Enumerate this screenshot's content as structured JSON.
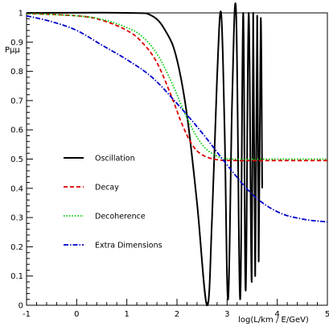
{
  "chart_data": {
    "type": "line",
    "xlabel": "log(L/km / E/GeV)",
    "ylabel": "Pμμ",
    "xlim": [
      -1,
      5
    ],
    "ylim": [
      0,
      1
    ],
    "x_ticks": [
      "-1",
      "0",
      "1",
      "2",
      "3",
      "4",
      "5"
    ],
    "y_ticks": [
      "0",
      "0.1",
      "0.2",
      "0.3",
      "0.4",
      "0.5",
      "0.6",
      "0.7",
      "0.8",
      "0.9",
      "1"
    ],
    "grid": false,
    "legend_position": "left",
    "series": [
      {
        "name": "Oscillation",
        "color": "#000000",
        "style": "solid",
        "x": [
          -1.0,
          1.0,
          1.5,
          1.8,
          2.0,
          2.2,
          2.4,
          2.6,
          2.7,
          2.8,
          2.88,
          2.95,
          3.02,
          3.1,
          3.18,
          3.26,
          3.32,
          3.37,
          3.43,
          3.49,
          3.52,
          3.56,
          3.6,
          3.63,
          3.67,
          3.7
        ],
        "y": [
          1.0,
          1.0,
          0.99,
          0.93,
          0.84,
          0.65,
          0.35,
          0.0,
          0.3,
          0.78,
          1.0,
          0.6,
          0.02,
          0.7,
          1.0,
          0.02,
          1.0,
          0.05,
          1.0,
          0.08,
          1.0,
          0.1,
          0.99,
          0.15,
          0.98,
          0.4
        ]
      },
      {
        "name": "Decay",
        "color": "#dd0000",
        "style": "dashed",
        "x": [
          -1.0,
          0.0,
          0.5,
          1.0,
          1.3,
          1.6,
          1.9,
          2.1,
          2.3,
          2.5,
          2.8,
          3.2,
          4.0,
          5.0
        ],
        "y": [
          0.998,
          0.99,
          0.975,
          0.94,
          0.9,
          0.83,
          0.71,
          0.62,
          0.55,
          0.515,
          0.498,
          0.495,
          0.495,
          0.495
        ]
      },
      {
        "name": "Decoherence",
        "color": "#00cc00",
        "style": "dotted",
        "x": [
          -1.0,
          0.0,
          0.5,
          1.0,
          1.3,
          1.6,
          1.9,
          2.2,
          2.5,
          2.8,
          3.1,
          4.0,
          5.0
        ],
        "y": [
          0.998,
          0.99,
          0.978,
          0.95,
          0.92,
          0.86,
          0.76,
          0.64,
          0.55,
          0.51,
          0.5,
          0.5,
          0.5
        ]
      },
      {
        "name": "Extra Dimensions",
        "color": "#0000cc",
        "style": "dashdot",
        "x": [
          -1.0,
          -0.5,
          0.0,
          0.5,
          1.0,
          1.5,
          2.0,
          2.5,
          3.0,
          3.5,
          4.0,
          4.5,
          5.0
        ],
        "y": [
          0.99,
          0.97,
          0.94,
          0.89,
          0.84,
          0.78,
          0.69,
          0.59,
          0.48,
          0.38,
          0.32,
          0.295,
          0.285
        ]
      }
    ]
  }
}
